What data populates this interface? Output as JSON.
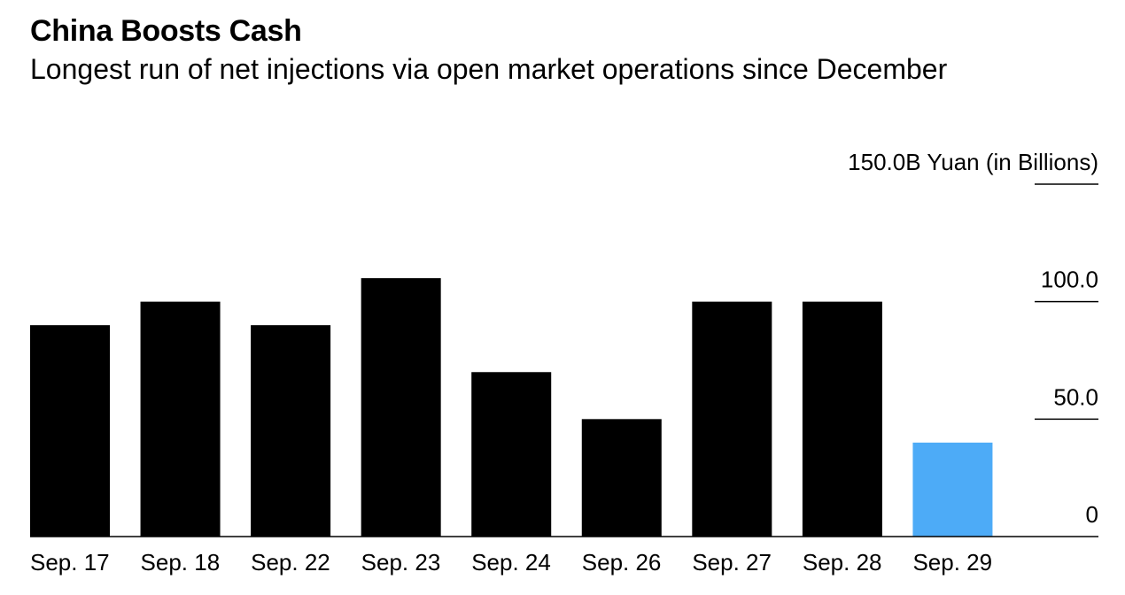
{
  "chart_data": {
    "type": "bar",
    "title": "China Boosts Cash",
    "subtitle": "Longest run of net injections via open market operations since December",
    "categories": [
      "Sep. 17",
      "Sep. 18",
      "Sep. 22",
      "Sep. 23",
      "Sep. 24",
      "Sep. 26",
      "Sep. 27",
      "Sep. 28",
      "Sep. 29"
    ],
    "values": [
      90,
      100,
      90,
      110,
      70,
      50,
      100,
      100,
      40
    ],
    "highlight_index": 8,
    "bar_color": "#000000",
    "highlight_color": "#4DABF7",
    "ylim": [
      0,
      150
    ],
    "yticks": [
      {
        "value": 0,
        "label": "0"
      },
      {
        "value": 50,
        "label": "50.0"
      },
      {
        "value": 100,
        "label": "100.0"
      },
      {
        "value": 150,
        "label": "150.0B Yuan (in Billions)"
      }
    ],
    "xlabel": "",
    "ylabel": "Yuan (in Billions)",
    "grid": false
  }
}
